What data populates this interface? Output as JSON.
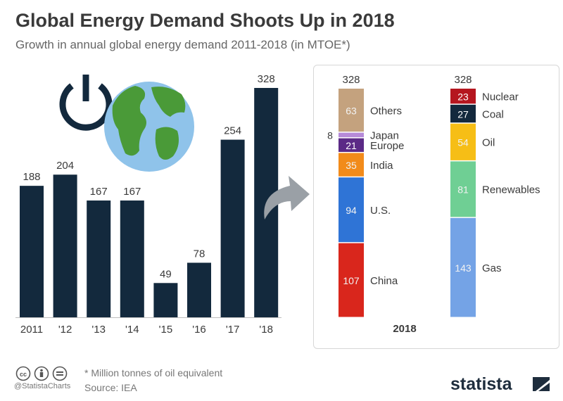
{
  "header": {
    "title": "Global Energy Demand Shoots Up in 2018",
    "subtitle": "Growth in annual global energy demand 2011-2018 (in MTOE*)"
  },
  "chart_data": [
    {
      "type": "bar",
      "categories": [
        "2011",
        "'12",
        "'13",
        "'14",
        "'15",
        "'16",
        "'17",
        "'18"
      ],
      "values": [
        188,
        204,
        167,
        167,
        49,
        78,
        254,
        328
      ],
      "ylim": [
        0,
        328
      ],
      "color": "#13293d",
      "grid": false
    },
    {
      "type": "bar",
      "stacked": true,
      "category": "2018",
      "stacks": [
        {
          "total": 328,
          "segments": [
            {
              "name": "China",
              "value": 107,
              "label": "107",
              "color": "#d9261c"
            },
            {
              "name": "U.S.",
              "value": 94,
              "label": "94",
              "color": "#2f74d6"
            },
            {
              "name": "India",
              "value": 35,
              "label": "35",
              "color": "#f28b1a"
            },
            {
              "name": "Europe",
              "value": 21,
              "label": "21",
              "color": "#5b2a86"
            },
            {
              "name": "Japan",
              "value": 8,
              "label": "8",
              "color": "#b68ad8"
            },
            {
              "name": "Others",
              "value": 63,
              "label": "63",
              "color": "#c4a27e"
            }
          ]
        },
        {
          "total": 328,
          "segments": [
            {
              "name": "Gas",
              "value": 143,
              "label": "143",
              "color": "#74a3e6"
            },
            {
              "name": "Renewables",
              "value": 81,
              "label": "81",
              "color": "#6fcf94"
            },
            {
              "name": "Oil",
              "value": 54,
              "label": "54",
              "color": "#f6be16"
            },
            {
              "name": "Coal",
              "value": 27,
              "label": "27",
              "color": "#13293d"
            },
            {
              "name": "Nuclear",
              "value": 23,
              "label": "23",
              "color": "#b5161f"
            }
          ]
        }
      ]
    }
  ],
  "footer": {
    "note": "* Million tonnes of oil equivalent",
    "source": "Source: IEA",
    "handle": "@StatistaCharts",
    "brand": "statista"
  },
  "icons": [
    "power-icon",
    "globe-icon",
    "arrow-icon",
    "cc-icon",
    "attribution-icon",
    "noderivs-icon",
    "statista-logo-icon"
  ]
}
